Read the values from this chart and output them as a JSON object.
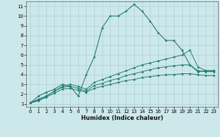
{
  "xlabel": "Humidex (Indice chaleur)",
  "background_color": "#cde8ea",
  "grid_color": "#aacfd4",
  "line_color": "#1e7a70",
  "xlim": [
    -0.5,
    23.5
  ],
  "ylim": [
    0.7,
    11.5
  ],
  "xticks": [
    0,
    1,
    2,
    3,
    4,
    5,
    6,
    7,
    8,
    9,
    10,
    11,
    12,
    13,
    14,
    15,
    16,
    17,
    18,
    19,
    20,
    21,
    22,
    23
  ],
  "yticks": [
    1,
    2,
    3,
    4,
    5,
    6,
    7,
    8,
    9,
    10,
    11
  ],
  "lines": [
    {
      "x": [
        0,
        1,
        2,
        3,
        4,
        5,
        6,
        7,
        8,
        9,
        10,
        11,
        12,
        13,
        14,
        15,
        16,
        17,
        18,
        19,
        20,
        21,
        22,
        23
      ],
      "y": [
        1.1,
        1.8,
        2.2,
        2.5,
        3.0,
        2.8,
        1.8,
        4.0,
        5.8,
        8.8,
        10.0,
        10.0,
        10.5,
        11.2,
        10.5,
        9.5,
        8.3,
        7.5,
        7.5,
        6.5,
        5.0,
        4.3,
        4.4,
        4.4
      ]
    },
    {
      "x": [
        0,
        1,
        2,
        3,
        4,
        5,
        6,
        7,
        8,
        9,
        10,
        11,
        12,
        13,
        14,
        15,
        16,
        17,
        18,
        19,
        20,
        21,
        22,
        23
      ],
      "y": [
        1.1,
        1.5,
        1.8,
        2.3,
        2.8,
        3.0,
        2.8,
        2.5,
        3.2,
        3.5,
        3.8,
        4.1,
        4.4,
        4.7,
        5.0,
        5.2,
        5.4,
        5.6,
        5.8,
        6.0,
        6.5,
        4.8,
        4.4,
        4.4
      ]
    },
    {
      "x": [
        0,
        1,
        2,
        3,
        4,
        5,
        6,
        7,
        8,
        9,
        10,
        11,
        12,
        13,
        14,
        15,
        16,
        17,
        18,
        19,
        20,
        21,
        22,
        23
      ],
      "y": [
        1.1,
        1.4,
        1.8,
        2.3,
        2.7,
        2.8,
        2.6,
        2.3,
        2.9,
        3.1,
        3.4,
        3.6,
        3.9,
        4.1,
        4.3,
        4.5,
        4.7,
        4.8,
        4.9,
        5.0,
        5.0,
        4.4,
        4.3,
        4.3
      ]
    },
    {
      "x": [
        0,
        1,
        2,
        3,
        4,
        5,
        6,
        7,
        8,
        9,
        10,
        11,
        12,
        13,
        14,
        15,
        16,
        17,
        18,
        19,
        20,
        21,
        22,
        23
      ],
      "y": [
        1.1,
        1.3,
        1.7,
        2.1,
        2.5,
        2.6,
        2.4,
        2.2,
        2.6,
        2.8,
        3.0,
        3.2,
        3.4,
        3.5,
        3.7,
        3.8,
        3.9,
        4.0,
        4.0,
        4.1,
        4.1,
        4.0,
        3.9,
        3.9
      ]
    }
  ]
}
